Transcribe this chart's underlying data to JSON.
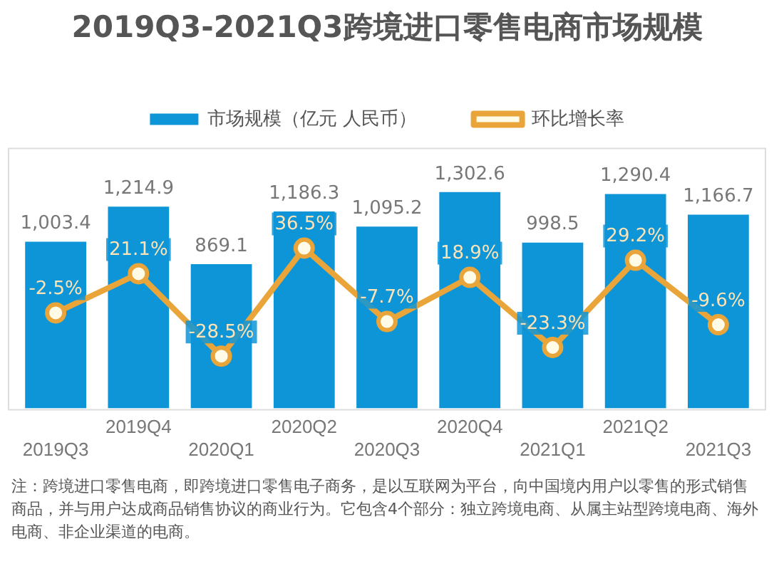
{
  "chart_data": {
    "type": "bar",
    "title": "2019Q3-2021Q3跨境进口零售电商市场规模",
    "categories": [
      "2019Q3",
      "2019Q4",
      "2020Q1",
      "2020Q2",
      "2020Q3",
      "2020Q4",
      "2021Q1",
      "2021Q2",
      "2021Q3"
    ],
    "series": [
      {
        "name": "市场规模（亿元 人民币）",
        "color": "#0e95d8",
        "values": [
          1003.4,
          1214.9,
          869.1,
          1186.3,
          1095.2,
          1302.6,
          998.5,
          1290.4,
          1166.7
        ],
        "value_labels": [
          "1,003.4",
          "1,214.9",
          "869.1",
          "1,186.3",
          "1,095.2",
          "1,302.6",
          "998.5",
          "1,290.4",
          "1,166.7"
        ]
      },
      {
        "name": "环比增长率",
        "type": "line",
        "axis": "y2",
        "color": "#e9a53a",
        "values": [
          -2.5,
          21.1,
          -28.5,
          36.5,
          -7.7,
          18.9,
          -23.3,
          29.2,
          -9.6
        ],
        "value_labels": [
          "-2.5%",
          "21.1%",
          "-28.5%",
          "36.5%",
          "-7.7%",
          "18.9%",
          "-23.3%",
          "29.2%",
          "-9.6%"
        ]
      }
    ],
    "tick_labels": "x",
    "legend": "top",
    "marker": "circle",
    "annotations": [
      "注：跨境进口零售电商，即跨境进口零售电子商务，是以互联网为平台，向中国境内用户以零售的形式销售商品，并与用户达成商品销售协议的商业行为。它包含4个部分：独立跨境电商、从属主站型跨境电商、海外电商、非企业渠道的电商。"
    ]
  }
}
